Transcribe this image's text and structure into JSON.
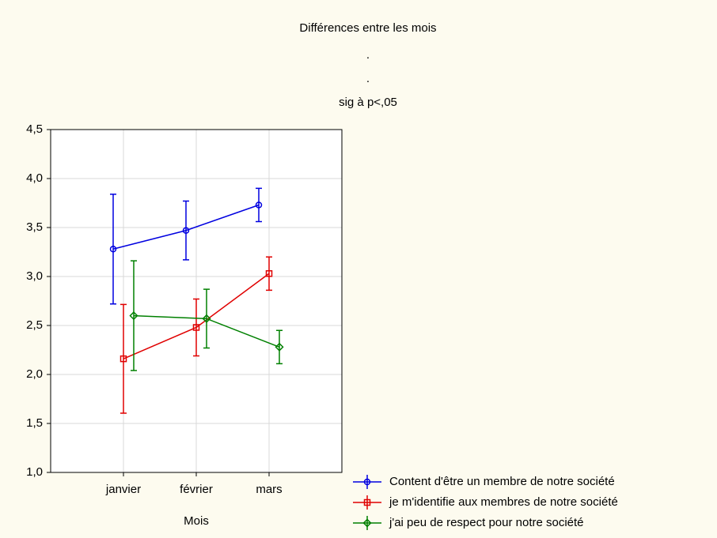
{
  "chart_data": {
    "type": "errorbar",
    "title": "Différences entre les mois",
    "subtitle_lines": [
      ".",
      ".",
      "sig à p<,05"
    ],
    "x_label": "Mois",
    "categories": [
      "janvier",
      "février",
      "mars"
    ],
    "series": [
      {
        "name": "Content d'être un membre de notre société",
        "color": "#0000e0",
        "marker": "circle",
        "values": [
          3.28,
          3.47,
          3.73
        ],
        "errors": [
          0.56,
          0.3,
          0.17
        ]
      },
      {
        "name": "je m'identifie aux membres de notre société",
        "color": "#e00000",
        "marker": "square",
        "values": [
          2.16,
          2.48,
          3.03
        ],
        "errors": [
          0.555,
          0.29,
          0.17
        ]
      },
      {
        "name": "j'ai peu de respect pour notre société",
        "color": "#008000",
        "marker": "diamond",
        "values": [
          2.6,
          2.57,
          2.28
        ],
        "errors": [
          0.56,
          0.3,
          0.17
        ]
      }
    ],
    "ylim": [
      1.0,
      4.5
    ],
    "yticks": [
      {
        "value": 1.0,
        "label": "1,0"
      },
      {
        "value": 1.5,
        "label": "1,5"
      },
      {
        "value": 2.0,
        "label": "2,0"
      },
      {
        "value": 2.5,
        "label": "2,5"
      },
      {
        "value": 3.0,
        "label": "3,0"
      },
      {
        "value": 3.5,
        "label": "3,5"
      },
      {
        "value": 4.0,
        "label": "4,0"
      },
      {
        "value": 4.5,
        "label": "4,5"
      }
    ],
    "grid": true,
    "legend": "bottom-right"
  }
}
